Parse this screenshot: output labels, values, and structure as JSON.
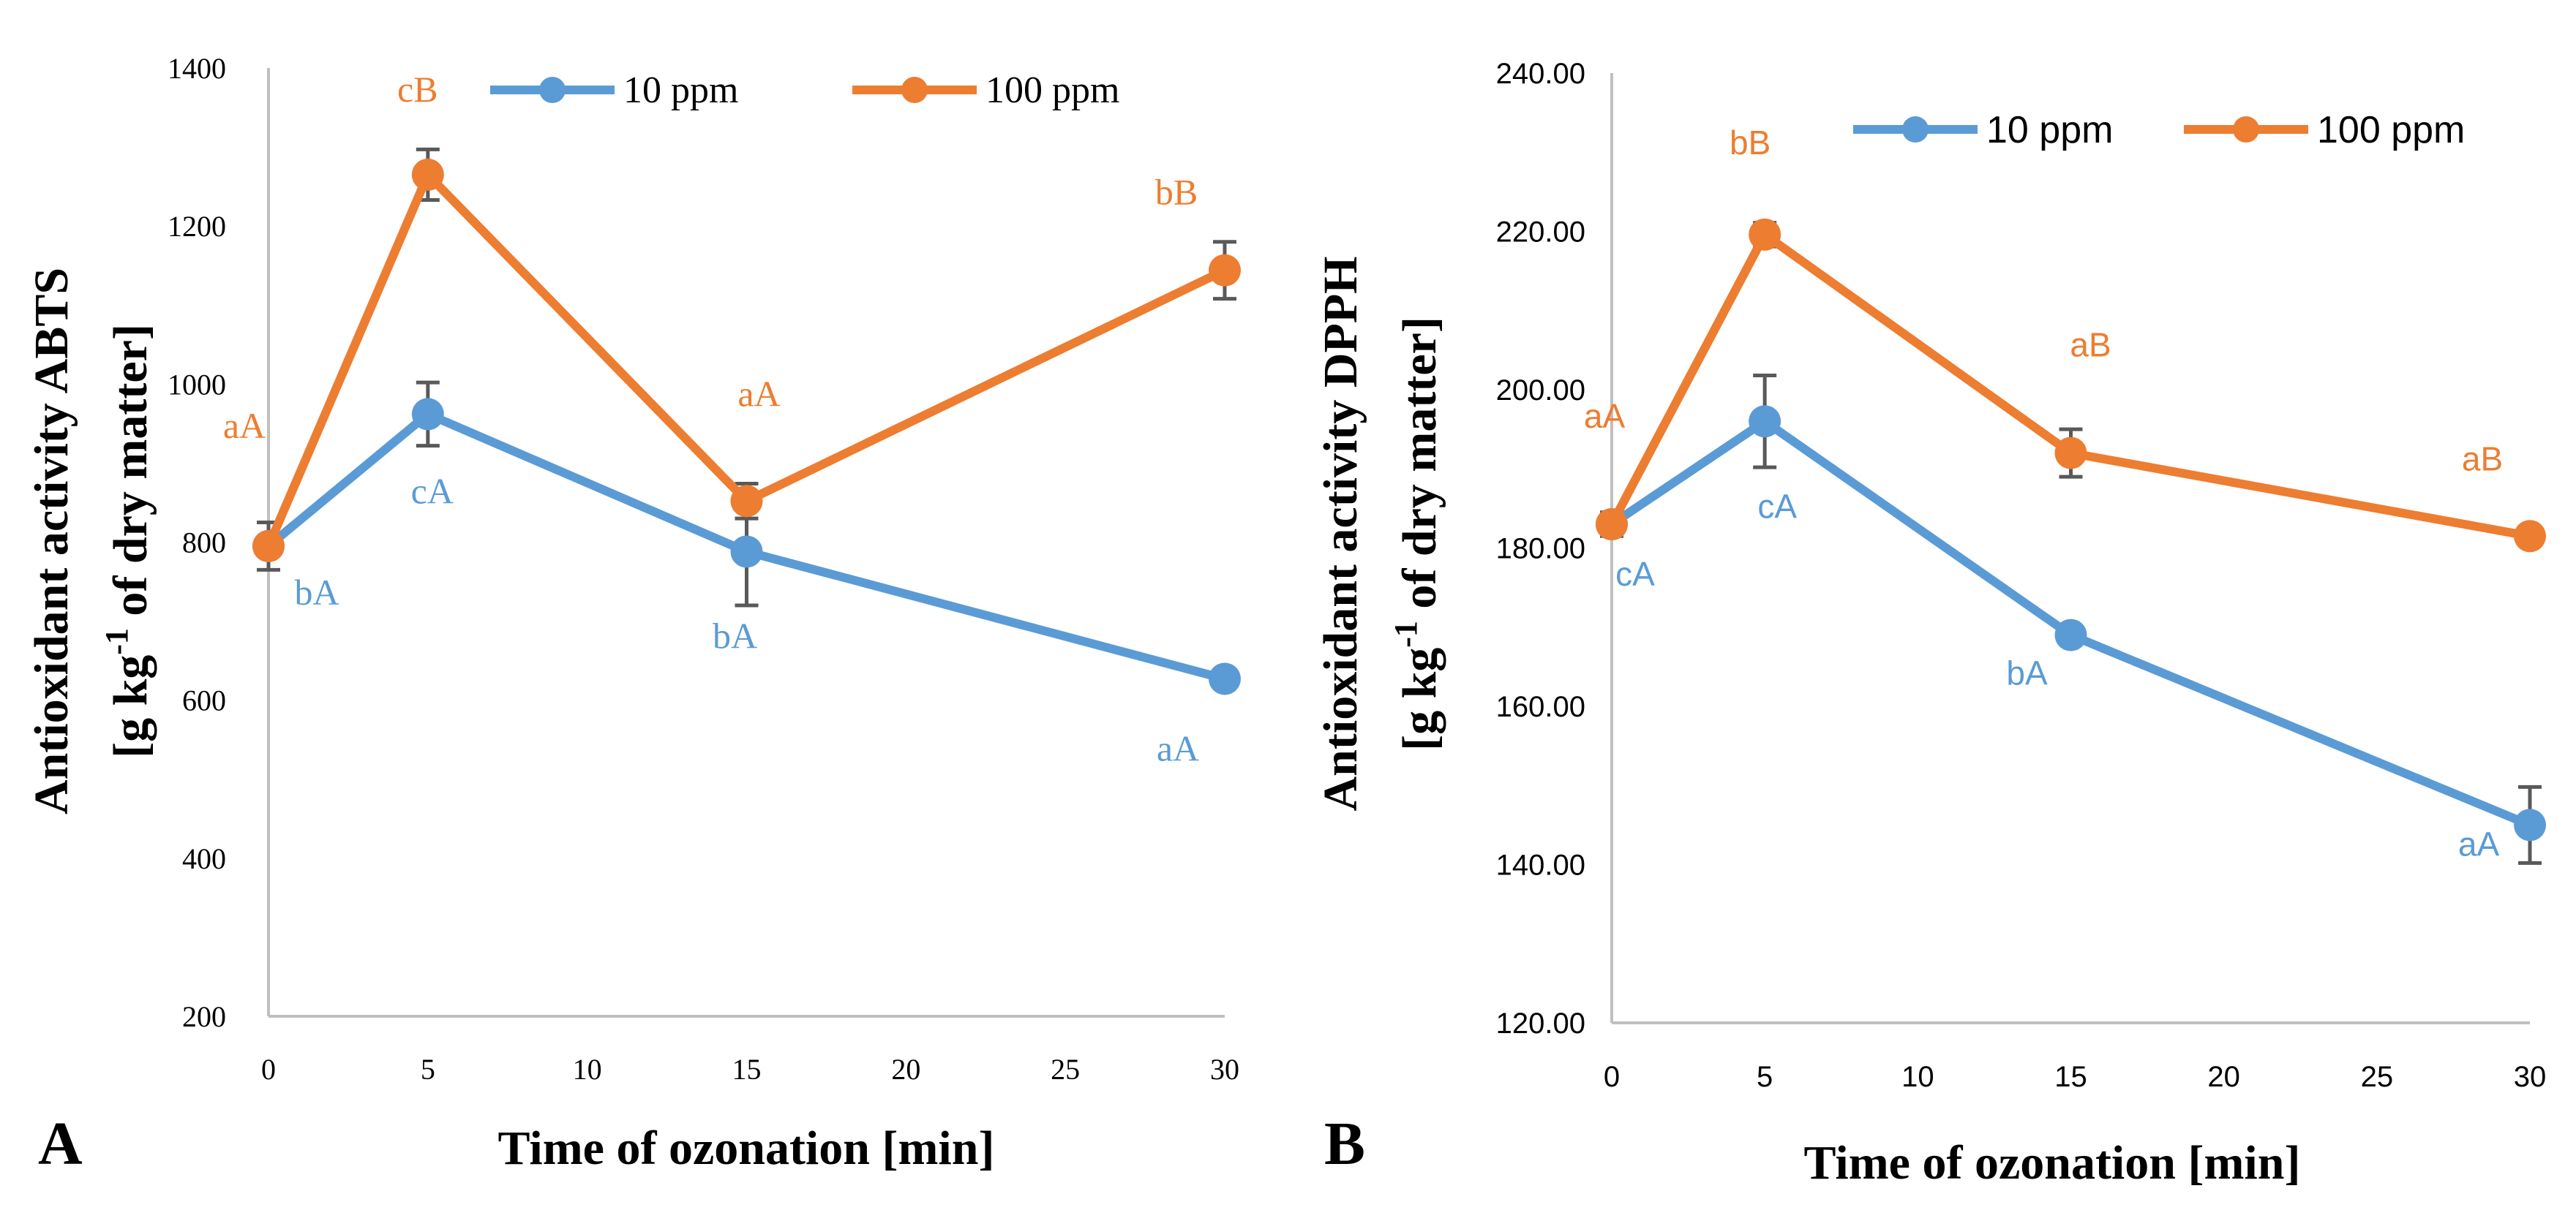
{
  "chart_data": [
    {
      "type": "line",
      "panel_label": "A",
      "font": "serif",
      "xlabel": "Time of ozonation [min]",
      "ylabel_line1": "Antioxidant activity ABTS",
      "ylabel_line2_pre": "[g kg",
      "ylabel_line2_sup": "-1",
      "ylabel_line2_post": " of dry matter]",
      "xlim": [
        0,
        30
      ],
      "ylim": [
        200,
        1400
      ],
      "xticks": [
        0,
        5,
        10,
        15,
        20,
        25,
        30
      ],
      "yticks": [
        200,
        400,
        600,
        800,
        1000,
        1200,
        1400
      ],
      "ytick_labels": [
        "200",
        "400",
        "600",
        "800",
        "1000",
        "1200",
        "1400"
      ],
      "xtick_labels": [
        "0",
        "5",
        "10",
        "15",
        "20",
        "25",
        "30"
      ],
      "legend": [
        "10 ppm",
        "100 ppm"
      ],
      "series": [
        {
          "name": "10 ppm",
          "color": "#5B9BD5",
          "x": [
            0,
            5,
            15,
            30
          ],
          "values": [
            795,
            962,
            788,
            627
          ],
          "errors": [
            30,
            40,
            68,
            0
          ],
          "labels": [
            "bA",
            "cA",
            "bA",
            "aA"
          ]
        },
        {
          "name": "100 ppm",
          "color": "#ED7D31",
          "x": [
            0,
            5,
            15,
            30
          ],
          "values": [
            795,
            1265,
            852,
            1144
          ],
          "errors": [
            0,
            32,
            22,
            36
          ],
          "labels": [
            "aA",
            "cB",
            "aA",
            "bB"
          ]
        }
      ]
    },
    {
      "type": "line",
      "panel_label": "B",
      "font": "sans",
      "xlabel": "Time of ozonation [min]",
      "ylabel_line1": "Antioxidant activity DPPH",
      "ylabel_line2_pre": "[g kg",
      "ylabel_line2_sup": "-1",
      "ylabel_line2_post": " of dry matter]",
      "xlim": [
        0,
        30
      ],
      "ylim": [
        120,
        240
      ],
      "xticks": [
        0,
        5,
        10,
        15,
        20,
        25,
        30
      ],
      "yticks": [
        120,
        140,
        160,
        180,
        200,
        220,
        240
      ],
      "ytick_labels": [
        "120.00",
        "140.00",
        "160.00",
        "180.00",
        "200.00",
        "220.00",
        "240.00"
      ],
      "xtick_labels": [
        "0",
        "5",
        "10",
        "15",
        "20",
        "25",
        "30"
      ],
      "legend": [
        "10 ppm",
        "100 ppm"
      ],
      "series": [
        {
          "name": "10 ppm",
          "color": "#5B9BD5",
          "x": [
            0,
            5,
            15,
            30
          ],
          "values": [
            183,
            196,
            169,
            145
          ],
          "errors": [
            1.5,
            5.8,
            1.2,
            4.8
          ],
          "labels": [
            "cA",
            "cA",
            "bA",
            "aA"
          ]
        },
        {
          "name": "100 ppm",
          "color": "#ED7D31",
          "x": [
            0,
            5,
            15,
            30
          ],
          "values": [
            183,
            219.6,
            192,
            181.5
          ],
          "errors": [
            0,
            1.5,
            3,
            0
          ],
          "labels": [
            "aA",
            "bB",
            "aB",
            "aB"
          ]
        }
      ]
    }
  ]
}
